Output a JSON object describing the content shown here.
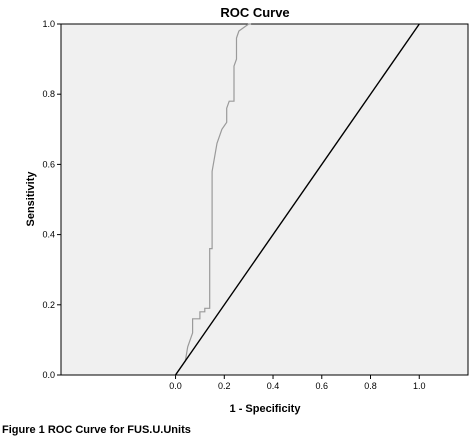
{
  "chart_data": {
    "type": "line",
    "title": "ROC Curve",
    "xlabel": "1 - Specificity",
    "ylabel": "Sensitivity",
    "xlim": [
      -0.47,
      1.2
    ],
    "ylim": [
      0,
      1
    ],
    "x_ticks": [
      "0.0",
      "0.2",
      "0.4",
      "0.6",
      "0.8",
      "1.0"
    ],
    "y_ticks": [
      "0.0",
      "0.2",
      "0.4",
      "0.6",
      "0.8",
      "1.0"
    ],
    "grid": false,
    "background_color": "#f0f0f0",
    "series": [
      {
        "color": "#9a9a9a",
        "x": [
          0.0,
          0.02,
          0.04,
          0.05,
          0.07,
          0.07,
          0.1,
          0.1,
          0.12,
          0.12,
          0.14,
          0.14,
          0.15,
          0.15,
          0.17,
          0.19,
          0.21,
          0.21,
          0.22,
          0.24,
          0.24,
          0.25,
          0.25,
          0.26,
          0.26,
          0.28,
          0.28,
          0.3,
          0.31,
          0.31
        ],
        "y": [
          0.0,
          0.02,
          0.04,
          0.08,
          0.12,
          0.16,
          0.16,
          0.18,
          0.18,
          0.19,
          0.19,
          0.36,
          0.36,
          0.58,
          0.66,
          0.7,
          0.72,
          0.76,
          0.78,
          0.78,
          0.88,
          0.9,
          0.96,
          0.98,
          0.98,
          0.99,
          0.99,
          1.0,
          1.0,
          1.0
        ]
      },
      {
        "color": "#000000",
        "x": [
          0.0,
          1.0
        ],
        "y": [
          0.0,
          1.0
        ]
      }
    ]
  },
  "caption": "Figure 1  ROC Curve for FUS.U.Units"
}
